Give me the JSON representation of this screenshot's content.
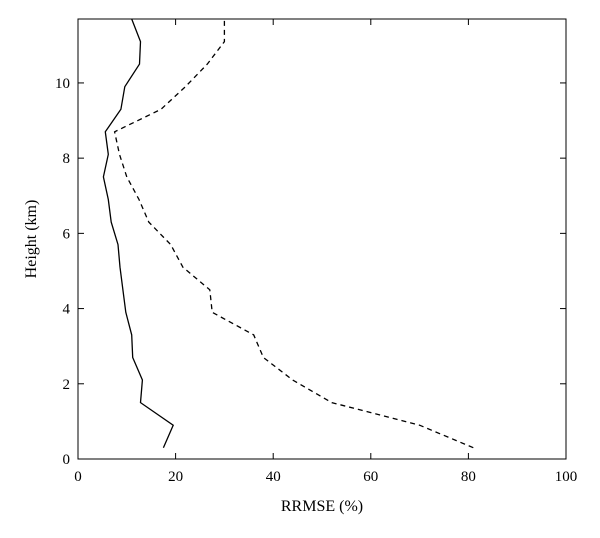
{
  "chart_data": {
    "type": "line",
    "title": "",
    "xlabel": "RRMSE (%)",
    "ylabel": "Height (km)",
    "xlim": [
      0,
      100
    ],
    "ylim": [
      0,
      11.7
    ],
    "xticks": [
      0,
      20,
      40,
      60,
      80,
      100
    ],
    "yticks": [
      0,
      2,
      4,
      6,
      8,
      10
    ],
    "grid": false,
    "legend": "none",
    "series": [
      {
        "style": "solid",
        "color": "#000000",
        "points": [
          [
            17.5,
            0.3
          ],
          [
            19.5,
            0.9
          ],
          [
            12.8,
            1.5
          ],
          [
            13.2,
            2.1
          ],
          [
            11.2,
            2.7
          ],
          [
            11.0,
            3.3
          ],
          [
            9.8,
            3.9
          ],
          [
            9.2,
            4.5
          ],
          [
            8.6,
            5.1
          ],
          [
            8.2,
            5.7
          ],
          [
            6.8,
            6.3
          ],
          [
            6.2,
            6.9
          ],
          [
            5.2,
            7.5
          ],
          [
            6.2,
            8.1
          ],
          [
            5.6,
            8.7
          ],
          [
            8.8,
            9.3
          ],
          [
            9.6,
            9.9
          ],
          [
            12.6,
            10.5
          ],
          [
            12.8,
            11.1
          ],
          [
            11.0,
            11.7
          ]
        ]
      },
      {
        "style": "dashed",
        "color": "#000000",
        "points": [
          [
            81.0,
            0.3
          ],
          [
            70.0,
            0.9
          ],
          [
            52.0,
            1.5
          ],
          [
            44.0,
            2.1
          ],
          [
            38.0,
            2.7
          ],
          [
            36.0,
            3.3
          ],
          [
            27.5,
            3.9
          ],
          [
            27.0,
            4.5
          ],
          [
            21.5,
            5.1
          ],
          [
            19.0,
            5.7
          ],
          [
            14.5,
            6.3
          ],
          [
            12.5,
            6.9
          ],
          [
            10.0,
            7.5
          ],
          [
            8.5,
            8.1
          ],
          [
            7.5,
            8.7
          ],
          [
            17.0,
            9.3
          ],
          [
            22.0,
            9.9
          ],
          [
            26.5,
            10.5
          ],
          [
            30.0,
            11.1
          ],
          [
            30.0,
            11.7
          ]
        ]
      }
    ]
  }
}
